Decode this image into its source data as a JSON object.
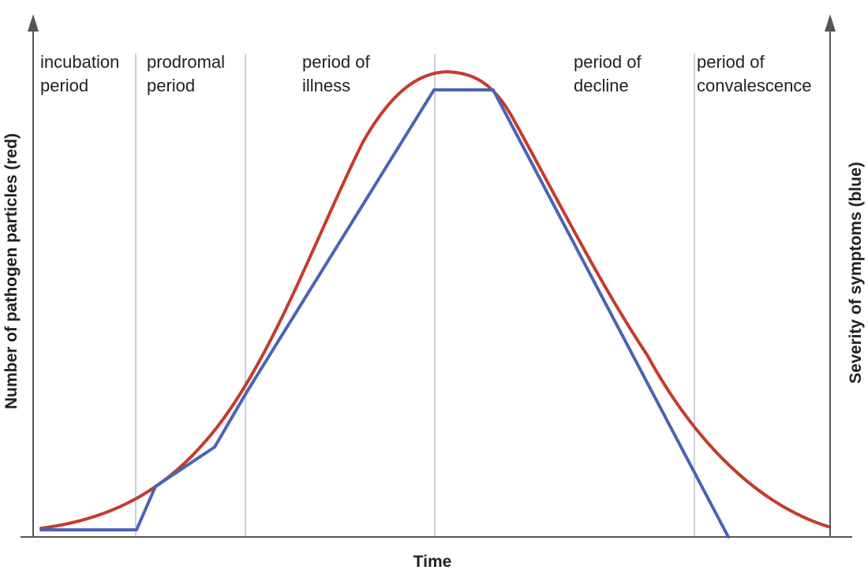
{
  "chart_data": {
    "type": "line",
    "xlabel": "Time",
    "ylabel_left": "Number of pathogen particles (red)",
    "ylabel_right": "Severity of symptoms (blue)",
    "phases": [
      {
        "line1": "incubation",
        "line2": "period"
      },
      {
        "line1": "prodromal",
        "line2": "period"
      },
      {
        "line1": "period of",
        "line2": "illness"
      },
      {
        "line1": "period of",
        "line2": "decline"
      },
      {
        "line1": "period of",
        "line2": "convalescence"
      }
    ],
    "colors": {
      "pathogen": "#c43b2b",
      "symptoms": "#4a63b5",
      "axis": "#555555",
      "divider": "#b9c0d2"
    }
  }
}
